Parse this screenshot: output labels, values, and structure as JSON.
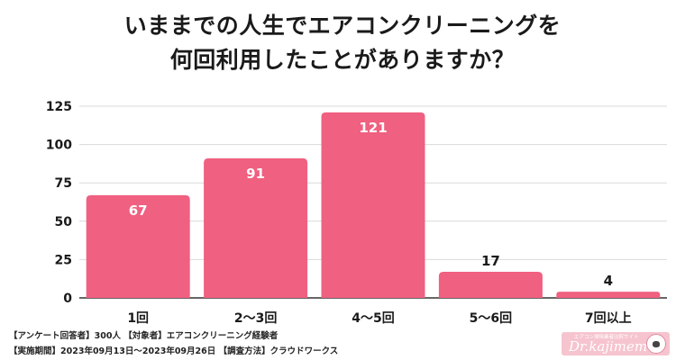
{
  "title_line1": "いままでの人生でエアコンクリーニングを",
  "title_line2": "何回利用したことがありますか？",
  "chart_data": {
    "type": "bar",
    "categories": [
      "1回",
      "2〜3回",
      "4〜5回",
      "5〜6回",
      "7回以上"
    ],
    "values": [
      67,
      91,
      121,
      17,
      4
    ],
    "data_labels": [
      "67",
      "91",
      "121",
      "17",
      "4"
    ],
    "yticks": [
      "0",
      "25",
      "50",
      "75",
      "100",
      "125"
    ],
    "ylim": [
      0,
      125
    ],
    "grid": true,
    "bar_color": "#f06080",
    "label_color_inside": "#ffffff",
    "label_color_outside": "#1a1a1a"
  },
  "footer": {
    "line1": "【アンケート回答者】300人 【対象者】エアコンクリーニング経験者",
    "line2": "【実施期間】2023年09月13日〜2023年09月26日 【調査方法】クラウドワークス"
  },
  "logo": {
    "tagline": "エアコン掃除業者比較サイト",
    "wordmark": "Dr.kajimemo"
  }
}
